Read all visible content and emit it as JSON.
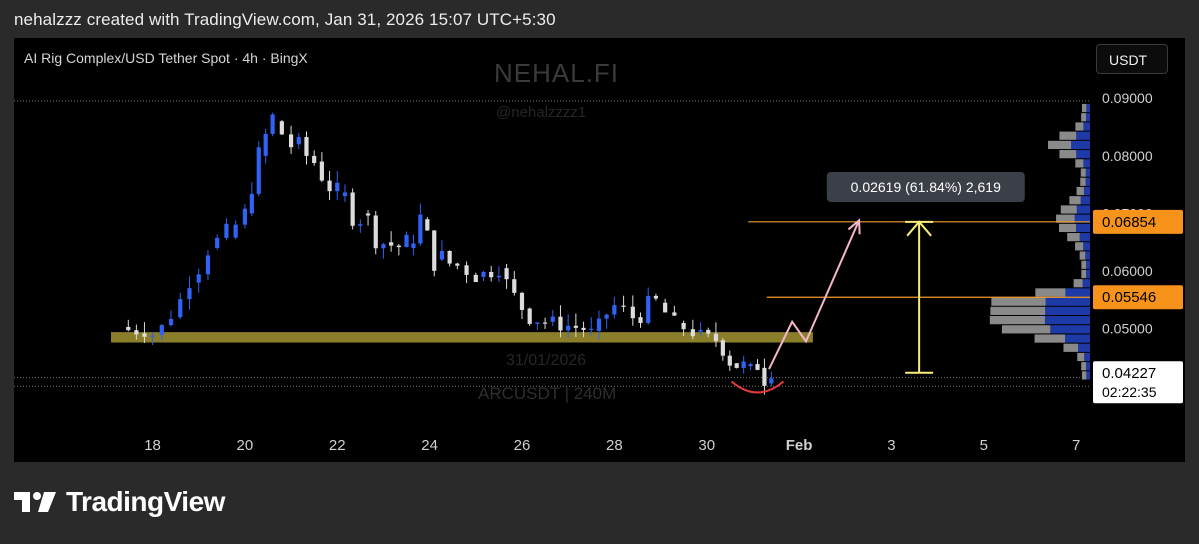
{
  "header": {
    "caption": "nehalzzz created with TradingView.com, Jan 31, 2026 15:07 UTC+5:30"
  },
  "chart_panel": {
    "title": "AI Rig Complex/USD Tether Spot · 4h · BingX",
    "currency_button": "USDT",
    "watermark_name": "NEHAL.FI",
    "watermark_handle": "@nehalzzzz1",
    "watermark_symbol": "ARCUSDT | 240M",
    "watermark_date": "31/01/2026"
  },
  "measure": {
    "label": "0.02619 (61.84%) 2,619"
  },
  "price_labels": {
    "upper_level": "0.06854",
    "lower_level": "0.05546",
    "last_price": "0.04227",
    "countdown": "02:22:35"
  },
  "footer": {
    "logo_text": "TradingView"
  },
  "colors": {
    "up": "#2f62f5",
    "down": "#dcdcdc",
    "level_line": "#f29a2e",
    "zone": "#b9a83a",
    "arrow_pink": "#f4b6c8",
    "arrow_yellow": "#f7ef7a",
    "circle_red": "#e23b3b"
  },
  "chart_data": {
    "type": "candlestick",
    "title": "AI Rig Complex/USD Tether Spot · 4h · BingX",
    "x_ticks": [
      "18",
      "20",
      "22",
      "24",
      "26",
      "28",
      "30",
      "Feb",
      "3",
      "5",
      "7"
    ],
    "y_ticks": [
      "0.09000",
      "0.08000",
      "0.07000",
      "0.06000",
      "0.05000"
    ],
    "ylim": [
      0.0345,
      0.0935
    ],
    "x_range_days": [
      15.0,
      38.3
    ],
    "tick_days": [
      18,
      20,
      22,
      24,
      26,
      28,
      30,
      32,
      34,
      36,
      38
    ],
    "horizontal_levels": [
      0.06854,
      0.05546
    ],
    "support_zone": [
      0.0476,
      0.0494
    ],
    "last_price": 0.04227,
    "measure": {
      "from": 0.04235,
      "to": 0.06854,
      "change": 0.02619,
      "percent": 61.84
    },
    "projected_path": [
      [
        31.35,
        0.043
      ],
      [
        31.85,
        0.0512
      ],
      [
        32.15,
        0.0478
      ],
      [
        33.3,
        0.0688
      ]
    ],
    "anchors": [
      [
        17.3,
        0.0503,
        0.0503,
        0.0498,
        0.0512
      ],
      [
        17.65,
        0.0497,
        0.0492,
        0.0482,
        0.0502
      ],
      [
        18.0,
        0.0492,
        0.0489,
        0.0475,
        0.0496
      ],
      [
        18.4,
        0.0489,
        0.052,
        0.0485,
        0.0524
      ],
      [
        18.8,
        0.052,
        0.058,
        0.0515,
        0.059
      ],
      [
        19.2,
        0.058,
        0.064,
        0.057,
        0.066
      ],
      [
        19.6,
        0.064,
        0.0658,
        0.0625,
        0.068
      ],
      [
        20.0,
        0.066,
        0.07,
        0.065,
        0.072
      ],
      [
        20.3,
        0.07,
        0.08,
        0.069,
        0.083
      ],
      [
        20.6,
        0.08,
        0.086,
        0.078,
        0.0885
      ],
      [
        21.0,
        0.086,
        0.082,
        0.079,
        0.088
      ],
      [
        21.5,
        0.082,
        0.079,
        0.076,
        0.085
      ],
      [
        22.0,
        0.079,
        0.073,
        0.069,
        0.081
      ],
      [
        22.5,
        0.073,
        0.07,
        0.066,
        0.076
      ],
      [
        23.0,
        0.07,
        0.065,
        0.062,
        0.0725
      ],
      [
        23.5,
        0.065,
        0.064,
        0.061,
        0.07
      ],
      [
        23.8,
        0.064,
        0.069,
        0.063,
        0.0715
      ],
      [
        24.1,
        0.069,
        0.062,
        0.06,
        0.07
      ],
      [
        24.6,
        0.062,
        0.061,
        0.0595,
        0.064
      ],
      [
        25.0,
        0.061,
        0.059,
        0.0575,
        0.0625
      ],
      [
        25.5,
        0.059,
        0.0605,
        0.058,
        0.0612
      ],
      [
        26.0,
        0.06,
        0.0535,
        0.0525,
        0.0608
      ],
      [
        26.5,
        0.0535,
        0.0512,
        0.05,
        0.055
      ],
      [
        27.0,
        0.0512,
        0.0505,
        0.0495,
        0.052
      ],
      [
        27.5,
        0.0505,
        0.0496,
        0.049,
        0.0515
      ],
      [
        28.0,
        0.05,
        0.054,
        0.0495,
        0.0555
      ],
      [
        28.4,
        0.054,
        0.052,
        0.0505,
        0.058
      ],
      [
        28.9,
        0.052,
        0.0545,
        0.051,
        0.056
      ],
      [
        29.3,
        0.0545,
        0.051,
        0.05,
        0.0555
      ],
      [
        29.7,
        0.051,
        0.0495,
        0.0485,
        0.052
      ],
      [
        30.2,
        0.0495,
        0.048,
        0.047,
        0.05
      ],
      [
        30.5,
        0.0485,
        0.044,
        0.043,
        0.049
      ],
      [
        30.8,
        0.044,
        0.0435,
        0.0425,
        0.0448
      ],
      [
        31.1,
        0.0436,
        0.0432,
        0.042,
        0.044
      ],
      [
        31.25,
        0.0432,
        0.0405,
        0.04,
        0.0436
      ],
      [
        31.4,
        0.0405,
        0.0423,
        0.04,
        0.043
      ]
    ]
  }
}
